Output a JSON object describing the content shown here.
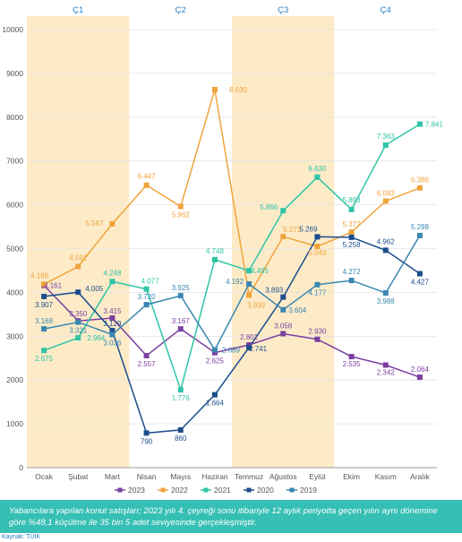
{
  "chart_data": {
    "type": "line",
    "categories": [
      "Ocak",
      "Şubat",
      "Mart",
      "Nisan",
      "Mayıs",
      "Haziran",
      "Temmuz",
      "Ağustos",
      "Eylül",
      "Ekim",
      "Kasım",
      "Aralık"
    ],
    "quarters": [
      "Ç1",
      "Ç2",
      "Ç3",
      "Ç4"
    ],
    "ylim": [
      0,
      10000
    ],
    "yticks": [
      0,
      1000,
      2000,
      3000,
      4000,
      5000,
      6000,
      7000,
      8000,
      9000,
      10000
    ],
    "grid": true,
    "legend_position": "bottom",
    "series": [
      {
        "name": "2023",
        "color": "#7b3fa0",
        "values": [
          4161,
          3350,
          3415,
          2557,
          3167,
          2625,
          2801,
          3058,
          2930,
          2535,
          2342,
          2064
        ],
        "labels": [
          "4.161",
          "3.350",
          "3.415",
          "2.557",
          "3.167",
          "2.625",
          "2.801",
          "3.058",
          "2.930",
          "2.535",
          "2.342",
          "2.064"
        ]
      },
      {
        "name": "2022",
        "color": "#f0a33c",
        "values": [
          4186,
          4591,
          5567,
          6447,
          5962,
          8630,
          3939,
          5273,
          5049,
          5377,
          6083,
          6386
        ],
        "labels": [
          "4.186",
          "4.591",
          "5.567",
          "6.447",
          "5.962",
          "8.630",
          "3.939",
          "5.273",
          "5.049",
          "5.377",
          "6.083",
          "6.386"
        ]
      },
      {
        "name": "2021",
        "color": "#2ec4a6",
        "values": [
          2675,
          2964,
          4248,
          4077,
          1776,
          4748,
          4495,
          5866,
          6630,
          5893,
          7363,
          7841
        ],
        "labels": [
          "2.675",
          "2.964",
          "4.248",
          "4.077",
          "1.776",
          "4.748",
          "4.495",
          "5.866",
          "6.630",
          "5.893",
          "7.363",
          "7.841"
        ]
      },
      {
        "name": "2020",
        "color": "#1c4e8c",
        "values": [
          3907,
          4005,
          3129,
          790,
          860,
          1664,
          2741,
          3893,
          5269,
          5258,
          4962,
          4427
        ],
        "labels": [
          "3.907",
          "4.005",
          "3.129",
          "790",
          "860",
          "1.664",
          "2.741",
          "3.893",
          "5.269",
          "5.258",
          "4.962",
          "4.427"
        ]
      },
      {
        "name": "2019",
        "color": "#3a87b0",
        "values": [
          3168,
          3321,
          3036,
          3720,
          3925,
          2689,
          4192,
          3604,
          4177,
          4272,
          3988,
          5298
        ],
        "labels": [
          "3.168",
          "3.321",
          "3.036",
          "3.720",
          "3.925",
          "2.689",
          "4.192",
          "3.604",
          "4.177",
          "4.272",
          "3.988",
          "5.298"
        ]
      }
    ]
  },
  "caption": "Yabancılara yapılan konut satışları; 2023 yılı 4. çeyreği sonu itibariyle 12 aylık periyotta geçen yılın aynı dönemine göre %48,1 küçülme ile 35 bin 5 adet seviyesinde gerçekleşmiştir.",
  "source": "Kaynak: TÜİK"
}
